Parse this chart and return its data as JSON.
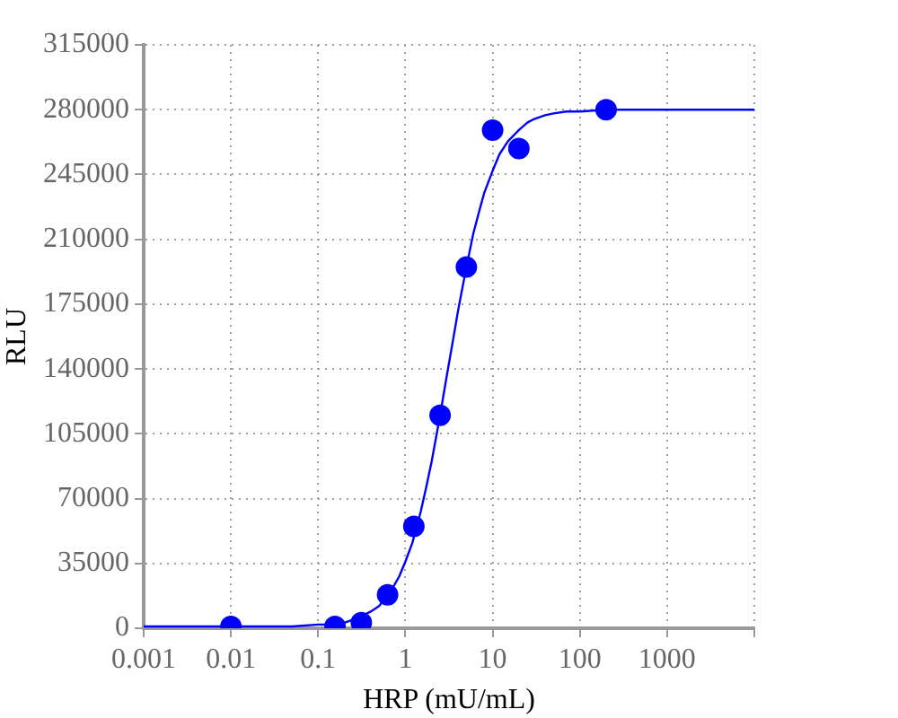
{
  "chart_data": {
    "type": "scatter",
    "xlabel": "HRP (mU/mL)",
    "ylabel": "RLU",
    "log": "x",
    "grid": true,
    "xlim": [
      0.001,
      10000
    ],
    "xticks": [
      0.001,
      0.01,
      0.1,
      1,
      10,
      100,
      1000,
      {
        "value": 10000,
        "label": null
      }
    ],
    "ylim": [
      0,
      315000
    ],
    "yticks": [
      0,
      35000,
      70000,
      105000,
      140000,
      175000,
      210000,
      245000,
      280000,
      315000
    ],
    "series": [
      {
        "type": "line",
        "color": "#0000ff",
        "marker": "none",
        "x": [
          0.001,
          0.01,
          0.05,
          0.1,
          0.15,
          0.2,
          0.3,
          0.4,
          0.5,
          0.7,
          0.85,
          1,
          1.2,
          1.5,
          1.75,
          2,
          2.5,
          3,
          3.5,
          4,
          5,
          6,
          7,
          8,
          10,
          12,
          15,
          20,
          25,
          30,
          40,
          50,
          70,
          100,
          200,
          1000,
          10000
        ],
        "values": [
          1000,
          1000,
          1000,
          2000,
          2000,
          3000,
          6000,
          9000,
          12000,
          21000,
          28000,
          36000,
          46000,
          63000,
          77000,
          90000,
          115000,
          137000,
          155000,
          171000,
          195000,
          213000,
          225000,
          235000,
          247000,
          256000,
          263000,
          269000,
          273000,
          275000,
          277000,
          278000,
          279000,
          279000,
          280000,
          280000,
          280000
        ]
      },
      {
        "color": "#0000ff",
        "marker": "circle",
        "x": [
          0.01,
          0.156,
          0.3125,
          0.625,
          1.25,
          2.5,
          5,
          10,
          20,
          200
        ],
        "values": [
          1000,
          1000,
          3000,
          18000,
          55000,
          115000,
          195000,
          269000,
          259000,
          280000
        ]
      }
    ]
  }
}
